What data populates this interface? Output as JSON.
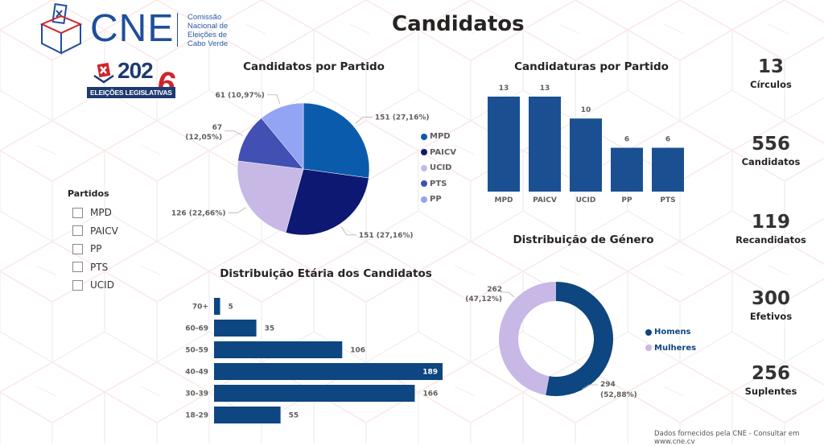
{
  "header": {
    "logo_name": "CNE",
    "logo_subtitle": [
      "Comissão",
      "Nacional de",
      "Eleições de",
      "Cabo Verde"
    ],
    "election_badge": {
      "year_prefix": "202",
      "year_suffix": "6",
      "label": "ELEIÇÕES LEGISLATIVAS"
    },
    "page_title": "Candidatos"
  },
  "slicer": {
    "title": "Partidos",
    "options": [
      {
        "label": "MPD",
        "checked": false
      },
      {
        "label": "PAICV",
        "checked": false
      },
      {
        "label": "PP",
        "checked": false
      },
      {
        "label": "PTS",
        "checked": false
      },
      {
        "label": "UCID",
        "checked": false
      }
    ]
  },
  "kpis": [
    {
      "value": "13",
      "label": "Círculos"
    },
    {
      "value": "556",
      "label": "Candidatos"
    },
    {
      "value": "119",
      "label": "Recandidatos"
    },
    {
      "value": "300",
      "label": "Efetivos"
    },
    {
      "value": "256",
      "label": "Suplentes"
    }
  ],
  "footer": {
    "text": "Dados fornecidos pela CNE - Consultar em www.cne.cv"
  },
  "colors": {
    "MPD": "#0b5bac",
    "PAICV": "#0c1871",
    "UCID": "#c7b8e6",
    "PTS": "#4150b2",
    "PP": "#94a4f4",
    "bar": "#1a5091",
    "agebar": "#0d4680",
    "homens": "#0d4680",
    "mulheres": "#c7b8e6"
  },
  "chart_data": [
    {
      "type": "pie",
      "title": "Candidatos por Partido",
      "categories": [
        "MPD",
        "PAICV",
        "UCID",
        "PTS",
        "PP"
      ],
      "values": [
        151,
        151,
        126,
        67,
        61
      ],
      "labels": [
        "151 (27,16%)",
        "151 (27,16%)",
        "126 (22,66%)",
        "67 (12,05%)",
        "61 (10,97%)"
      ],
      "legend": [
        "MPD",
        "PAICV",
        "UCID",
        "PTS",
        "PP"
      ],
      "legend_position": "right"
    },
    {
      "type": "bar",
      "title": "Candidaturas por Partido",
      "categories": [
        "MPD",
        "PAICV",
        "UCID",
        "PP",
        "PTS"
      ],
      "values": [
        13,
        13,
        10,
        6,
        6
      ],
      "ylim": [
        0,
        13
      ]
    },
    {
      "type": "bar",
      "orientation": "horizontal",
      "title": "Distribuição Etária dos Candidatos",
      "categories": [
        "70+",
        "60-69",
        "50-59",
        "40-49",
        "30-39",
        "18-29"
      ],
      "values": [
        5,
        35,
        106,
        189,
        166,
        55
      ],
      "xlim": [
        0,
        189
      ]
    },
    {
      "type": "pie",
      "variant": "donut",
      "title": "Distribuição de Género",
      "categories": [
        "Homens",
        "Mulheres"
      ],
      "values": [
        294,
        262
      ],
      "labels": [
        "294 (52,88%)",
        "262 (47,12%)"
      ],
      "legend": [
        "Homens",
        "Mulheres"
      ],
      "legend_position": "right"
    }
  ]
}
